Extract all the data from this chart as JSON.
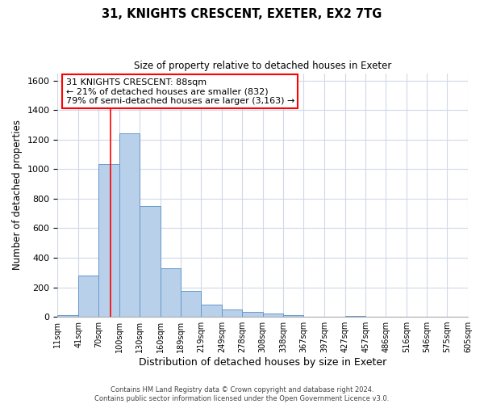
{
  "title": "31, KNIGHTS CRESCENT, EXETER, EX2 7TG",
  "subtitle": "Size of property relative to detached houses in Exeter",
  "xlabel": "Distribution of detached houses by size in Exeter",
  "ylabel": "Number of detached properties",
  "bar_values": [
    10,
    280,
    1035,
    1240,
    750,
    330,
    175,
    80,
    50,
    35,
    20,
    10,
    0,
    0,
    5,
    0,
    0,
    0,
    0,
    0
  ],
  "bin_edges": [
    11,
    41,
    70,
    100,
    130,
    160,
    189,
    219,
    249,
    278,
    308,
    338,
    367,
    397,
    427,
    457,
    486,
    516,
    546,
    575,
    605
  ],
  "tick_labels": [
    "11sqm",
    "41sqm",
    "70sqm",
    "100sqm",
    "130sqm",
    "160sqm",
    "189sqm",
    "219sqm",
    "249sqm",
    "278sqm",
    "308sqm",
    "338sqm",
    "367sqm",
    "397sqm",
    "427sqm",
    "457sqm",
    "486sqm",
    "516sqm",
    "546sqm",
    "575sqm",
    "605sqm"
  ],
  "bar_color": "#b8d0ea",
  "bar_edge_color": "#6699cc",
  "property_line_x": 88,
  "property_line_color": "red",
  "ylim": [
    0,
    1650
  ],
  "yticks": [
    0,
    200,
    400,
    600,
    800,
    1000,
    1200,
    1400,
    1600
  ],
  "annotation_title": "31 KNIGHTS CRESCENT: 88sqm",
  "annotation_line1": "← 21% of detached houses are smaller (832)",
  "annotation_line2": "79% of semi-detached houses are larger (3,163) →",
  "annotation_box_color": "white",
  "annotation_box_edge_color": "red",
  "footer_line1": "Contains HM Land Registry data © Crown copyright and database right 2024.",
  "footer_line2": "Contains public sector information licensed under the Open Government Licence v3.0.",
  "background_color": "white",
  "grid_color": "#d0d8e8"
}
